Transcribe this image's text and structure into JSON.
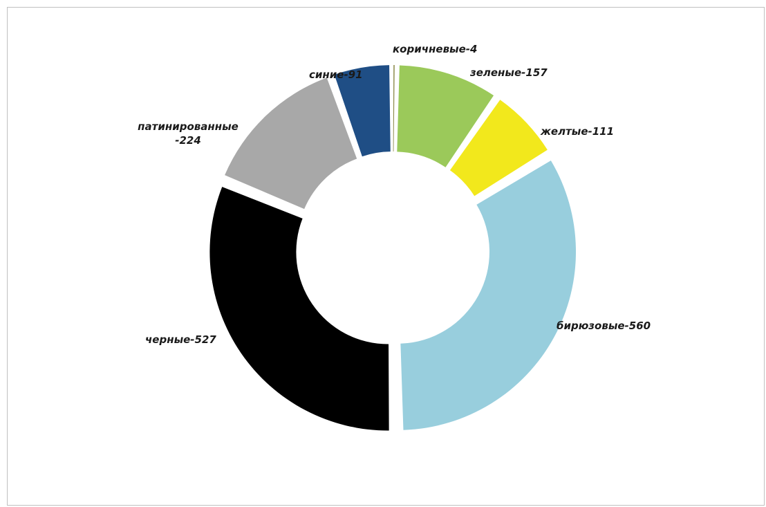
{
  "chart_data": {
    "type": "pie",
    "variant": "donut-exploded",
    "title": "",
    "start_angle_deg": 0,
    "direction": "clockwise",
    "slices": [
      {
        "key": "brown",
        "label": "коричневые-4",
        "label_lines": [
          "коричневые-4"
        ],
        "value": 4,
        "color": "#8b8a4a"
      },
      {
        "key": "green",
        "label": "зеленые-157",
        "label_lines": [
          "зеленые-157"
        ],
        "value": 157,
        "color": "#9bc95a"
      },
      {
        "key": "yellow",
        "label": "желтые-111",
        "label_lines": [
          "желтые-111"
        ],
        "value": 111,
        "color": "#f2e81c"
      },
      {
        "key": "turquoise",
        "label": "бирюзовые-560",
        "label_lines": [
          "бирюзовые-560"
        ],
        "value": 560,
        "color": "#98cedd"
      },
      {
        "key": "black",
        "label": "черные-527",
        "label_lines": [
          "черные-527"
        ],
        "value": 527,
        "color": "#000000"
      },
      {
        "key": "patinated",
        "label": "патинированные -224",
        "label_lines": [
          "патинированные",
          "-224"
        ],
        "value": 224,
        "color": "#a8a8a8"
      },
      {
        "key": "blue",
        "label": "синие-91",
        "label_lines": [
          "синие-91"
        ],
        "value": 91,
        "color": "#1f4e85"
      }
    ]
  }
}
